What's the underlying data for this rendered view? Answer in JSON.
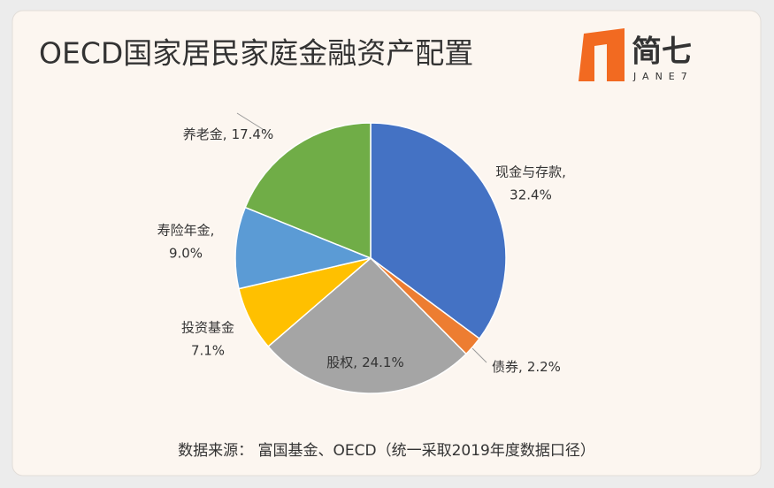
{
  "chart_data": {
    "type": "pie",
    "title": "OECD国家居民家庭金融资产配置",
    "logo": {
      "text": "简七",
      "subtext": "JANE7"
    },
    "categories": [
      "现金与存款,",
      "债券,",
      "股权,",
      "投资基金",
      "寿险年金,",
      "养老金,"
    ],
    "values": [
      32.4,
      2.2,
      24.1,
      7.1,
      9.0,
      17.4
    ],
    "value_labels": [
      "32.4%",
      "2.2%",
      "24.1%",
      "7.1%",
      "9.0%",
      "17.4%"
    ],
    "colors": [
      "#4472c4",
      "#ed7d31",
      "#a5a5a5",
      "#ffc000",
      "#5b9bd5",
      "#70ad47"
    ],
    "source": "数据来源： 富国基金、OECD（统一采取2019年度数据口径）"
  }
}
